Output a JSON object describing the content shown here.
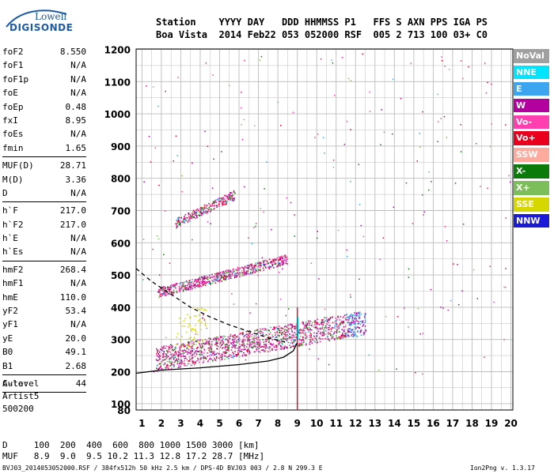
{
  "logo": {
    "line1": "Lowell",
    "line2": "DIGISONDE"
  },
  "header": {
    "line1": "Station    YYYY DAY   DDD HHMMSS P1   FFS S AXN PPS IGA PS",
    "line2": "Boa Vista  2014 Feb22 053 052000 RSF  005 2 713 100 03+ C0"
  },
  "params": [
    {
      "name": "foF2",
      "value": "8.550"
    },
    {
      "name": "foF1",
      "value": "N/A"
    },
    {
      "name": "foF1p",
      "value": "N/A"
    },
    {
      "name": "foE",
      "value": "N/A"
    },
    {
      "name": "foEp",
      "value": "0.48"
    },
    {
      "name": "fxI",
      "value": "8.95"
    },
    {
      "name": "foEs",
      "value": "N/A"
    },
    {
      "name": "fmin",
      "value": "1.65"
    },
    {
      "name": "MUF(D)",
      "value": "28.71"
    },
    {
      "name": "M(D)",
      "value": "3.36"
    },
    {
      "name": "D",
      "value": "N/A"
    },
    {
      "name": "h`F",
      "value": "217.0"
    },
    {
      "name": "h`F2",
      "value": "217.0"
    },
    {
      "name": "h`E",
      "value": "N/A"
    },
    {
      "name": "h`Es",
      "value": "N/A"
    },
    {
      "name": "hmF2",
      "value": "268.4"
    },
    {
      "name": "hmF1",
      "value": "N/A"
    },
    {
      "name": "hmE",
      "value": "110.0"
    },
    {
      "name": "yF2",
      "value": "53.4"
    },
    {
      "name": "yF1",
      "value": "N/A"
    },
    {
      "name": "yE",
      "value": "20.0"
    },
    {
      "name": "B0",
      "value": "49.1"
    },
    {
      "name": "B1",
      "value": "2.68"
    },
    {
      "name": "C-level",
      "value": "44"
    }
  ],
  "auto": {
    "line1": "Auto:",
    "line2": "Artist5",
    "line3": "500200"
  },
  "footer": {
    "d_line": "D     100  200  400  600  800 1000 1500 3000 [km]",
    "muf_line": "MUF   8.9  9.0  9.5 10.2 11.3 12.8 17.2 28.7 [MHz]",
    "file_line": "BVJ03_2014053052000.RSF / 384fx512h 50 kHz 2.5 km / DPS-4D BVJ03 003 / 2.8 N 299.3 E",
    "version": "Ion2Png v. 1.3.17"
  },
  "legend": [
    {
      "label": "NoVal",
      "color": "#a0a0a0"
    },
    {
      "label": "NNE",
      "color": "#00e5ff"
    },
    {
      "label": "E",
      "color": "#3da5f0"
    },
    {
      "label": "W",
      "color": "#b4009e"
    },
    {
      "label": "Vo-",
      "color": "#ff3fb0"
    },
    {
      "label": "Vo+",
      "color": "#e8001c"
    },
    {
      "label": "SSW",
      "color": "#ffaa9e"
    },
    {
      "label": "X-",
      "color": "#0a7a0a"
    },
    {
      "label": "X+",
      "color": "#7cbf5a"
    },
    {
      "label": "SSE",
      "color": "#d6d600"
    },
    {
      "label": "NNW",
      "color": "#1a1ad8"
    }
  ],
  "chart_data": {
    "type": "scatter",
    "xlim": [
      0.7,
      20.1
    ],
    "ylim": [
      80,
      1200
    ],
    "x_ticks": [
      1,
      2,
      3,
      4,
      5,
      6,
      7,
      8,
      9,
      10,
      11,
      12,
      13,
      14,
      15,
      16,
      17,
      18,
      19,
      20
    ],
    "y_ticks": [
      80,
      100,
      200,
      300,
      400,
      500,
      600,
      700,
      800,
      900,
      1000,
      1100,
      1200
    ],
    "grid": true,
    "traces": [
      {
        "name": "1-hop trace",
        "color": "#e0208a",
        "x_start": 1.7,
        "x_end": 12.5,
        "h_start": 225,
        "h_end": 340
      },
      {
        "name": "2-hop trace",
        "color": "#e0208a",
        "x_start": 1.8,
        "x_end": 8.5,
        "h_start": 440,
        "h_end": 545
      },
      {
        "name": "3-hop trace",
        "color": "#e0208a",
        "x_start": 2.7,
        "x_end": 5.8,
        "h_start": 655,
        "h_end": 745
      }
    ],
    "profile_solid": [
      [
        0.7,
        195
      ],
      [
        2,
        205
      ],
      [
        4,
        212
      ],
      [
        6,
        222
      ],
      [
        7.5,
        233
      ],
      [
        8.3,
        245
      ],
      [
        8.8,
        265
      ],
      [
        9.0,
        290
      ]
    ],
    "profile_dashed": [
      [
        0.7,
        520
      ],
      [
        1.5,
        480
      ],
      [
        2.5,
        440
      ],
      [
        3.5,
        400
      ],
      [
        4.5,
        370
      ],
      [
        5.5,
        345
      ],
      [
        6.5,
        325
      ],
      [
        7.5,
        305
      ],
      [
        8.2,
        295
      ],
      [
        8.55,
        290
      ]
    ],
    "fxi_marker": {
      "x": 9.0,
      "h_from": 80,
      "h_to": 400
    }
  }
}
